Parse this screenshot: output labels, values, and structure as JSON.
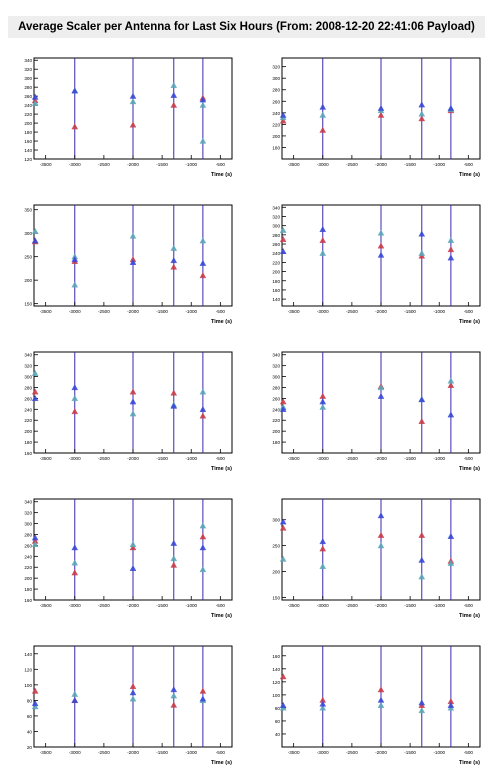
{
  "title": "Average Scaler per Antenna for Last Six Hours (From: 2008-12-20 22:41:06 Payload)",
  "colors": {
    "red": "#cc3b4a",
    "cyan": "#5aa7b8",
    "blue": "#3848d8",
    "vline": "#3a2ab0"
  },
  "chart_data": [
    {
      "type": "scatter",
      "xlabel": "Time (s)",
      "xlim": [
        -3700,
        -300
      ],
      "xticks": [
        -3500,
        -3000,
        -2500,
        -2000,
        -1500,
        -1000,
        -500
      ],
      "ylim": [
        120,
        345
      ],
      "yticks": [
        120,
        140,
        160,
        180,
        200,
        220,
        240,
        260,
        280,
        300,
        320,
        340
      ],
      "vlines": [
        -3000,
        -2000,
        -1300,
        -800
      ],
      "series": [
        {
          "name": "red",
          "points": [
            [
              -3680,
              250
            ],
            [
              -3000,
              192
            ],
            [
              -2000,
              196
            ],
            [
              -1300,
              240
            ],
            [
              -800,
              256
            ]
          ]
        },
        {
          "name": "cyan",
          "points": [
            [
              -3680,
              244
            ],
            [
              -3000,
              272
            ],
            [
              -2000,
              248
            ],
            [
              -1300,
              284
            ],
            [
              -800,
              240
            ],
            [
              -800,
              160
            ]
          ]
        },
        {
          "name": "blue",
          "points": [
            [
              -3680,
              258
            ],
            [
              -3000,
              272
            ],
            [
              -2000,
              260
            ],
            [
              -1300,
              262
            ],
            [
              -800,
              252
            ]
          ]
        }
      ]
    },
    {
      "type": "scatter",
      "xlabel": "Time (s)",
      "xlim": [
        -3700,
        -300
      ],
      "xticks": [
        -3500,
        -3000,
        -2500,
        -2000,
        -1500,
        -1000,
        -500
      ],
      "ylim": [
        160,
        335
      ],
      "yticks": [
        180,
        200,
        220,
        240,
        260,
        280,
        300,
        320
      ],
      "vlines": [
        -3000,
        -2000,
        -1300,
        -800
      ],
      "series": [
        {
          "name": "red",
          "points": [
            [
              -3680,
              226
            ],
            [
              -3000,
              210
            ],
            [
              -2000,
              236
            ],
            [
              -1300,
              230
            ],
            [
              -800,
              244
            ]
          ]
        },
        {
          "name": "cyan",
          "points": [
            [
              -3680,
              232
            ],
            [
              -3000,
              236
            ],
            [
              -2000,
              244
            ],
            [
              -1300,
              238
            ],
            [
              -800,
              246
            ]
          ]
        },
        {
          "name": "blue",
          "points": [
            [
              -3680,
              236
            ],
            [
              -3000,
              250
            ],
            [
              -2000,
              248
            ],
            [
              -1300,
              254
            ],
            [
              -800,
              248
            ]
          ]
        }
      ]
    },
    {
      "type": "scatter",
      "xlabel": "Time (s)",
      "xlim": [
        -3700,
        -300
      ],
      "xticks": [
        -3500,
        -3000,
        -2500,
        -2000,
        -1500,
        -1000,
        -500
      ],
      "ylim": [
        145,
        360
      ],
      "yticks": [
        150,
        200,
        250,
        300,
        350
      ],
      "vlines": [
        -3000,
        -2000,
        -1300,
        -800
      ],
      "series": [
        {
          "name": "red",
          "points": [
            [
              -3680,
              282
            ],
            [
              -3000,
              240
            ],
            [
              -2000,
              244
            ],
            [
              -1300,
              228
            ],
            [
              -800,
              210
            ]
          ]
        },
        {
          "name": "cyan",
          "points": [
            [
              -3680,
              304
            ],
            [
              -3000,
              190
            ],
            [
              -3000,
              250
            ],
            [
              -2000,
              294
            ],
            [
              -1300,
              268
            ],
            [
              -800,
              284
            ]
          ]
        },
        {
          "name": "blue",
          "points": [
            [
              -3680,
              284
            ],
            [
              -3000,
              244
            ],
            [
              -2000,
              238
            ],
            [
              -1300,
              242
            ],
            [
              -800,
              236
            ]
          ]
        }
      ]
    },
    {
      "type": "scatter",
      "xlabel": "Time (s)",
      "xlim": [
        -3700,
        -300
      ],
      "xticks": [
        -3500,
        -3000,
        -2500,
        -2000,
        -1500,
        -1000,
        -500
      ],
      "ylim": [
        125,
        345
      ],
      "yticks": [
        140,
        160,
        180,
        200,
        220,
        240,
        260,
        280,
        300,
        320,
        340
      ],
      "vlines": [
        -3000,
        -2000,
        -1300,
        -800
      ],
      "series": [
        {
          "name": "red",
          "points": [
            [
              -3680,
              270
            ],
            [
              -3000,
              268
            ],
            [
              -2000,
              256
            ],
            [
              -1300,
              234
            ],
            [
              -800,
              248
            ]
          ]
        },
        {
          "name": "cyan",
          "points": [
            [
              -3680,
              290
            ],
            [
              -3000,
              240
            ],
            [
              -2000,
              284
            ],
            [
              -1300,
              240
            ],
            [
              -800,
              268
            ]
          ]
        },
        {
          "name": "blue",
          "points": [
            [
              -3680,
              244
            ],
            [
              -3000,
              292
            ],
            [
              -2000,
              236
            ],
            [
              -1300,
              282
            ],
            [
              -800,
              230
            ]
          ]
        }
      ]
    },
    {
      "type": "scatter",
      "xlabel": "Time (s)",
      "xlim": [
        -3700,
        -300
      ],
      "xticks": [
        -3500,
        -3000,
        -2500,
        -2000,
        -1500,
        -1000,
        -500
      ],
      "ylim": [
        160,
        345
      ],
      "yticks": [
        160,
        180,
        200,
        220,
        240,
        260,
        280,
        300,
        320,
        340
      ],
      "vlines": [
        -3000,
        -2000,
        -1300,
        -800
      ],
      "series": [
        {
          "name": "red",
          "points": [
            [
              -3680,
              272
            ],
            [
              -3000,
              236
            ],
            [
              -2000,
              272
            ],
            [
              -1300,
              270
            ],
            [
              -800,
              228
            ]
          ]
        },
        {
          "name": "cyan",
          "points": [
            [
              -3680,
              306
            ],
            [
              -3000,
              260
            ],
            [
              -2000,
              232
            ],
            [
              -1300,
              248
            ],
            [
              -800,
              272
            ]
          ]
        },
        {
          "name": "blue",
          "points": [
            [
              -3680,
              260
            ],
            [
              -3000,
              280
            ],
            [
              -2000,
              254
            ],
            [
              -1300,
              246
            ],
            [
              -800,
              240
            ]
          ]
        }
      ]
    },
    {
      "type": "scatter",
      "xlabel": "Time (s)",
      "xlim": [
        -3700,
        -300
      ],
      "xticks": [
        -3500,
        -3000,
        -2500,
        -2000,
        -1500,
        -1000,
        -500
      ],
      "ylim": [
        160,
        345
      ],
      "yticks": [
        180,
        200,
        220,
        240,
        260,
        280,
        300,
        320,
        340
      ],
      "vlines": [
        -3000,
        -2000,
        -1300,
        -800
      ],
      "series": [
        {
          "name": "red",
          "points": [
            [
              -3680,
              254
            ],
            [
              -3000,
              264
            ],
            [
              -2000,
              282
            ],
            [
              -1300,
              218
            ],
            [
              -800,
              284
            ]
          ]
        },
        {
          "name": "cyan",
          "points": [
            [
              -3680,
              244
            ],
            [
              -3000,
              244
            ],
            [
              -2000,
              280
            ],
            [
              -1300,
              258
            ],
            [
              -800,
              292
            ]
          ]
        },
        {
          "name": "blue",
          "points": [
            [
              -3680,
              240
            ],
            [
              -3000,
              254
            ],
            [
              -2000,
              264
            ],
            [
              -1300,
              258
            ],
            [
              -800,
              230
            ]
          ]
        }
      ]
    },
    {
      "type": "scatter",
      "xlabel": "Time (s)",
      "xlim": [
        -3700,
        -300
      ],
      "xticks": [
        -3500,
        -3000,
        -2500,
        -2000,
        -1500,
        -1000,
        -500
      ],
      "ylim": [
        160,
        345
      ],
      "yticks": [
        160,
        180,
        200,
        220,
        240,
        260,
        280,
        300,
        320,
        340
      ],
      "vlines": [
        -3000,
        -2000,
        -1300,
        -800
      ],
      "series": [
        {
          "name": "red",
          "points": [
            [
              -3680,
              268
            ],
            [
              -3000,
              210
            ],
            [
              -2000,
              256
            ],
            [
              -1300,
              224
            ],
            [
              -800,
              276
            ]
          ]
        },
        {
          "name": "cyan",
          "points": [
            [
              -3680,
              262
            ],
            [
              -3000,
              228
            ],
            [
              -2000,
              262
            ],
            [
              -1300,
              236
            ],
            [
              -800,
              296
            ],
            [
              -800,
              216
            ]
          ]
        },
        {
          "name": "blue",
          "points": [
            [
              -3680,
              274
            ],
            [
              -3000,
              256
            ],
            [
              -2000,
              218
            ],
            [
              -1300,
              264
            ],
            [
              -800,
              256
            ]
          ]
        }
      ]
    },
    {
      "type": "scatter",
      "xlabel": "Time (s)",
      "xlim": [
        -3700,
        -300
      ],
      "xticks": [
        -3500,
        -3000,
        -2500,
        -2000,
        -1500,
        -1000,
        -500
      ],
      "ylim": [
        145,
        340
      ],
      "yticks": [
        150,
        200,
        250,
        300
      ],
      "vlines": [
        -3000,
        -2000,
        -1300,
        -800
      ],
      "series": [
        {
          "name": "red",
          "points": [
            [
              -3680,
              284
            ],
            [
              -3000,
              244
            ],
            [
              -2000,
              270
            ],
            [
              -1300,
              270
            ],
            [
              -800,
              220
            ]
          ]
        },
        {
          "name": "cyan",
          "points": [
            [
              -3680,
              224
            ],
            [
              -3000,
              210
            ],
            [
              -2000,
              250
            ],
            [
              -1300,
              190
            ],
            [
              -800,
              216
            ]
          ]
        },
        {
          "name": "blue",
          "points": [
            [
              -3680,
              296
            ],
            [
              -3000,
              258
            ],
            [
              -2000,
              308
            ],
            [
              -1300,
              222
            ],
            [
              -800,
              268
            ]
          ]
        }
      ]
    },
    {
      "type": "scatter",
      "xlabel": "Time (s)",
      "xlim": [
        -3700,
        -300
      ],
      "xticks": [
        -3500,
        -3000,
        -2500,
        -2000,
        -1500,
        -1000,
        -500
      ],
      "ylim": [
        20,
        150
      ],
      "yticks": [
        20,
        40,
        60,
        80,
        100,
        120,
        140
      ],
      "vlines": [
        -3000,
        -2000,
        -1300,
        -800
      ],
      "series": [
        {
          "name": "red",
          "points": [
            [
              -3680,
              92
            ],
            [
              -3000,
              80
            ],
            [
              -2000,
              98
            ],
            [
              -1300,
              74
            ],
            [
              -800,
              92
            ]
          ]
        },
        {
          "name": "cyan",
          "points": [
            [
              -3680,
              72
            ],
            [
              -3000,
              88
            ],
            [
              -2000,
              82
            ],
            [
              -1300,
              86
            ],
            [
              -800,
              80
            ]
          ]
        },
        {
          "name": "blue",
          "points": [
            [
              -3680,
              76
            ],
            [
              -3000,
              80
            ],
            [
              -2000,
              90
            ],
            [
              -1300,
              94
            ],
            [
              -800,
              82
            ]
          ]
        }
      ]
    },
    {
      "type": "scatter",
      "xlabel": "Time (s)",
      "xlim": [
        -3700,
        -300
      ],
      "xticks": [
        -3500,
        -3000,
        -2500,
        -2000,
        -1500,
        -1000,
        -500
      ],
      "ylim": [
        20,
        175
      ],
      "yticks": [
        40,
        60,
        80,
        100,
        120,
        140,
        160
      ],
      "vlines": [
        -3000,
        -2000,
        -1300,
        -800
      ],
      "series": [
        {
          "name": "red",
          "points": [
            [
              -3680,
              128
            ],
            [
              -3000,
              92
            ],
            [
              -2000,
              108
            ],
            [
              -1300,
              84
            ],
            [
              -800,
              90
            ]
          ]
        },
        {
          "name": "cyan",
          "points": [
            [
              -3680,
              80
            ],
            [
              -3000,
              80
            ],
            [
              -2000,
              84
            ],
            [
              -1300,
              76
            ],
            [
              -800,
              80
            ]
          ]
        },
        {
          "name": "blue",
          "points": [
            [
              -3680,
              84
            ],
            [
              -3000,
              86
            ],
            [
              -2000,
              92
            ],
            [
              -1300,
              88
            ],
            [
              -800,
              84
            ]
          ]
        }
      ]
    }
  ]
}
